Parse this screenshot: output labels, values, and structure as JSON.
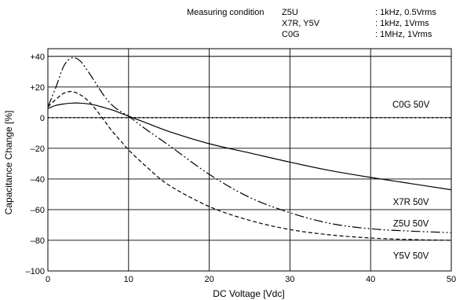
{
  "chart_data": {
    "type": "line",
    "title": "",
    "xlabel": "DC Voltage [Vdc]",
    "ylabel": "Capacitance Change [%]",
    "xlim": [
      0,
      50
    ],
    "ylim": [
      -100,
      45
    ],
    "x_ticks": [
      {
        "value": 0,
        "label": "0"
      },
      {
        "value": 10,
        "label": "10"
      },
      {
        "value": 20,
        "label": "20"
      },
      {
        "value": 30,
        "label": "30"
      },
      {
        "value": 40,
        "label": "40"
      },
      {
        "value": 50,
        "label": "50"
      }
    ],
    "y_ticks": [
      {
        "value": 40,
        "label": "+40"
      },
      {
        "value": 20,
        "label": "+20"
      },
      {
        "value": 0,
        "label": "0"
      },
      {
        "value": -20,
        "label": "–20"
      },
      {
        "value": -40,
        "label": "–40"
      },
      {
        "value": -60,
        "label": "–60"
      },
      {
        "value": -80,
        "label": "–80"
      },
      {
        "value": -100,
        "label": "–100"
      }
    ],
    "grid": true,
    "measuring_condition": {
      "title": "Measuring condition",
      "rows": [
        {
          "type": "Z5U",
          "condition": ": 1kHz, 0.5Vrms"
        },
        {
          "type": "X7R, Y5V",
          "condition": ": 1kHz, 1Vrms"
        },
        {
          "type": "C0G",
          "condition": ": 1MHz, 1Vrms"
        }
      ]
    },
    "series": [
      {
        "name": "C0G 50V",
        "style": "dotted",
        "color": "#000000",
        "x": [
          0,
          10,
          20,
          30,
          40,
          50
        ],
        "y": [
          0,
          0,
          0,
          0,
          0,
          0
        ]
      },
      {
        "name": "X7R 50V",
        "style": "solid",
        "color": "#000000",
        "x": [
          0,
          1,
          2,
          3,
          4,
          5,
          6,
          7,
          8,
          9,
          10,
          12,
          15,
          20,
          25,
          30,
          35,
          40,
          45,
          50
        ],
        "y": [
          6,
          8,
          9,
          9.5,
          9.5,
          9,
          8,
          6.5,
          5,
          3,
          1,
          -3,
          -9,
          -17,
          -23,
          -29,
          -34.5,
          -39,
          -43,
          -47
        ]
      },
      {
        "name": "Z5U 50V",
        "style": "dash-dot-dot",
        "color": "#000000",
        "x": [
          0,
          1,
          2,
          3,
          4,
          5,
          6,
          7,
          8,
          9,
          10,
          12,
          15,
          20,
          25,
          30,
          35,
          40,
          45,
          50
        ],
        "y": [
          7,
          20,
          34,
          39,
          37,
          30,
          22,
          14,
          8,
          4,
          1,
          -7,
          -18,
          -37,
          -52,
          -62,
          -69,
          -72.5,
          -74,
          -75
        ]
      },
      {
        "name": "Y5V 50V",
        "style": "dashed",
        "color": "#000000",
        "x": [
          0,
          1,
          2,
          3,
          4,
          5,
          6,
          7,
          8,
          9,
          10,
          12,
          15,
          20,
          25,
          30,
          35,
          40,
          45,
          50
        ],
        "y": [
          7,
          12,
          16,
          17,
          15,
          11,
          5,
          -2,
          -9,
          -15,
          -21,
          -31,
          -44,
          -58,
          -67,
          -73,
          -76.5,
          -78.5,
          -79.5,
          -80
        ]
      }
    ],
    "series_labels": [
      {
        "text": "C0G 50V",
        "x": 45,
        "y": 6.5
      },
      {
        "text": "X7R 50V",
        "x": 45,
        "y": -57
      },
      {
        "text": "Z5U 50V",
        "x": 45,
        "y": -71
      },
      {
        "text": "Y5V 50V",
        "x": 45,
        "y": -92
      }
    ]
  }
}
